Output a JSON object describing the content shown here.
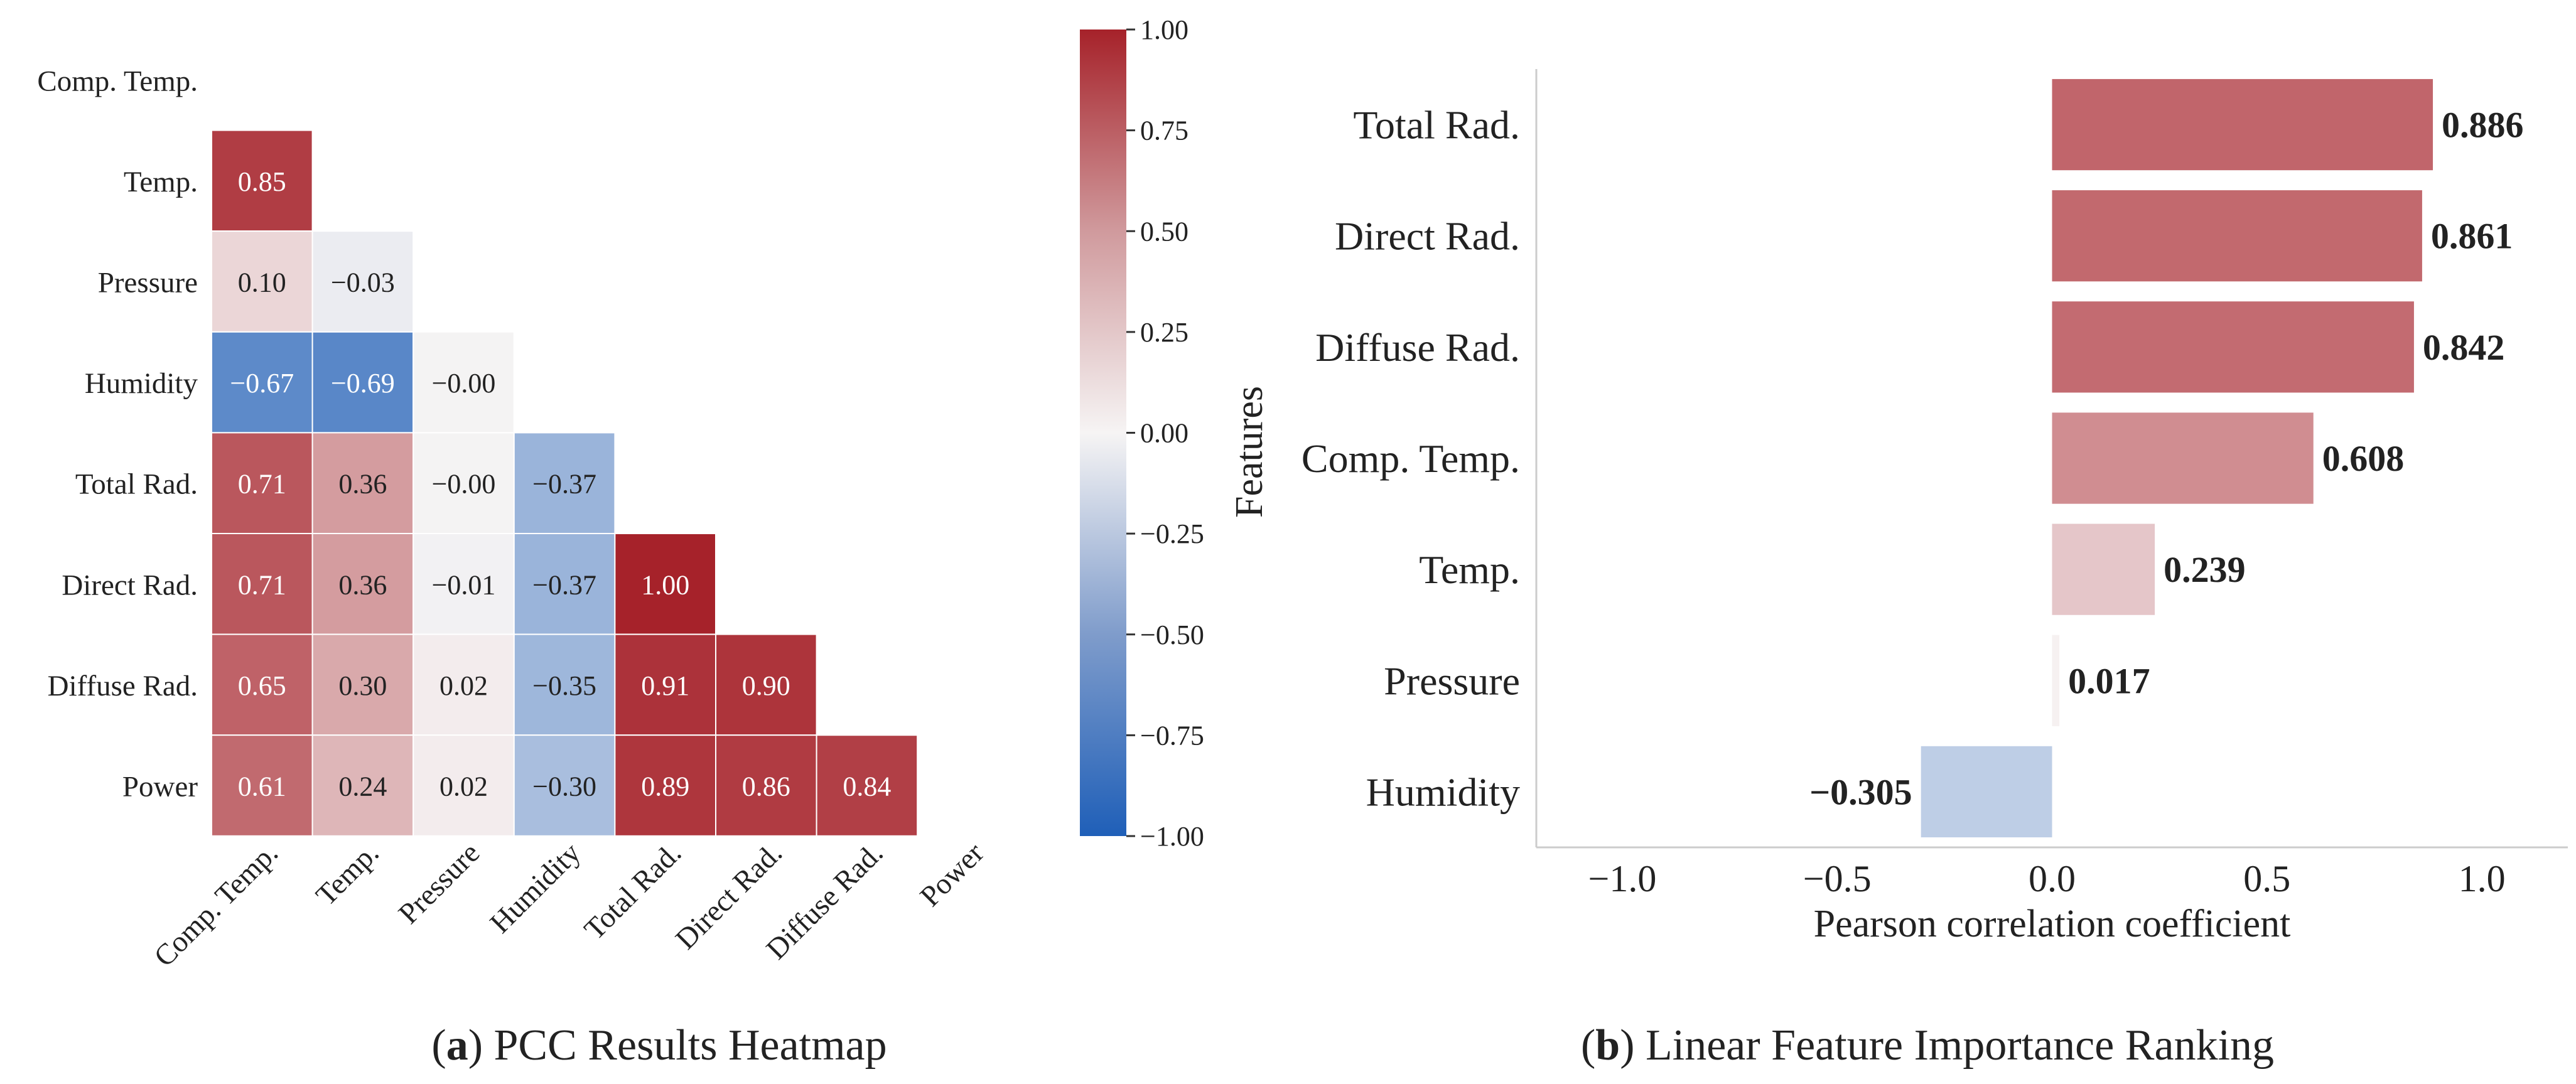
{
  "chart_data": [
    {
      "type": "heatmap",
      "caption_label": "a",
      "caption_text": "PCC Results Heatmap",
      "row_labels": [
        "Comp. Temp.",
        "Temp.",
        "Pressure",
        "Humidity",
        "Total Rad.",
        "Direct Rad.",
        "Diffuse Rad.",
        "Power"
      ],
      "col_labels": [
        "Comp. Temp.",
        "Temp.",
        "Pressure",
        "Humidity",
        "Total Rad.",
        "Direct Rad.",
        "Diffuse Rad.",
        "Power"
      ],
      "values": [
        [
          null,
          null,
          null,
          null,
          null,
          null,
          null,
          null
        ],
        [
          0.85,
          null,
          null,
          null,
          null,
          null,
          null,
          null
        ],
        [
          0.1,
          -0.03,
          null,
          null,
          null,
          null,
          null,
          null
        ],
        [
          -0.67,
          -0.69,
          -0.004,
          null,
          null,
          null,
          null,
          null
        ],
        [
          0.71,
          0.36,
          -0.004,
          -0.37,
          null,
          null,
          null,
          null
        ],
        [
          0.71,
          0.36,
          -0.01,
          -0.37,
          1.0,
          null,
          null,
          null
        ],
        [
          0.65,
          0.3,
          0.02,
          -0.35,
          0.91,
          0.9,
          null,
          null
        ],
        [
          0.61,
          0.24,
          0.02,
          -0.3,
          0.89,
          0.86,
          0.84,
          null
        ]
      ],
      "value_labels": [
        [],
        [
          "0.85"
        ],
        [
          "0.10",
          "−0.03"
        ],
        [
          "−0.67",
          "−0.69",
          "−0.00"
        ],
        [
          "0.71",
          "0.36",
          "−0.00",
          "−0.37"
        ],
        [
          "0.71",
          "0.36",
          "−0.01",
          "−0.37",
          "1.00"
        ],
        [
          "0.65",
          "0.30",
          "0.02",
          "−0.35",
          "0.91",
          "0.90"
        ],
        [
          "0.61",
          "0.24",
          "0.02",
          "−0.30",
          "0.89",
          "0.86",
          "0.84"
        ]
      ],
      "colorbar": {
        "range": [
          -1,
          1
        ],
        "tick_values": [
          1.0,
          0.75,
          0.5,
          0.25,
          0.0,
          -0.25,
          -0.5,
          -0.75,
          -1.0
        ],
        "tick_labels": [
          "1.00",
          "0.75",
          "0.50",
          "0.25",
          "0.00",
          "−0.25",
          "−0.50",
          "−0.75",
          "−1.00"
        ]
      },
      "colors": {
        "negative": "#1f5fb8",
        "neutral": "#f6f4f4",
        "positive": "#a6222a"
      }
    },
    {
      "type": "bar",
      "orientation": "horizontal",
      "caption_label": "b",
      "caption_text": "Linear Feature Importance Ranking",
      "categories": [
        "Total Rad.",
        "Direct Rad.",
        "Diffuse Rad.",
        "Comp. Temp.",
        "Temp.",
        "Pressure",
        "Humidity"
      ],
      "values": [
        0.886,
        0.861,
        0.842,
        0.608,
        0.239,
        0.017,
        -0.305
      ],
      "value_labels": [
        "0.886",
        "0.861",
        "0.842",
        "0.608",
        "0.239",
        "0.017",
        "−0.305"
      ],
      "xlabel": "Pearson correlation coefficient",
      "ylabel": "Features",
      "xlim": [
        -1.2,
        1.2
      ],
      "xticks": [
        -1.0,
        -0.5,
        0.0,
        0.5,
        1.0
      ],
      "xtick_labels": [
        "−1.0",
        "−0.5",
        "0.0",
        "0.5",
        "1.0"
      ]
    }
  ]
}
